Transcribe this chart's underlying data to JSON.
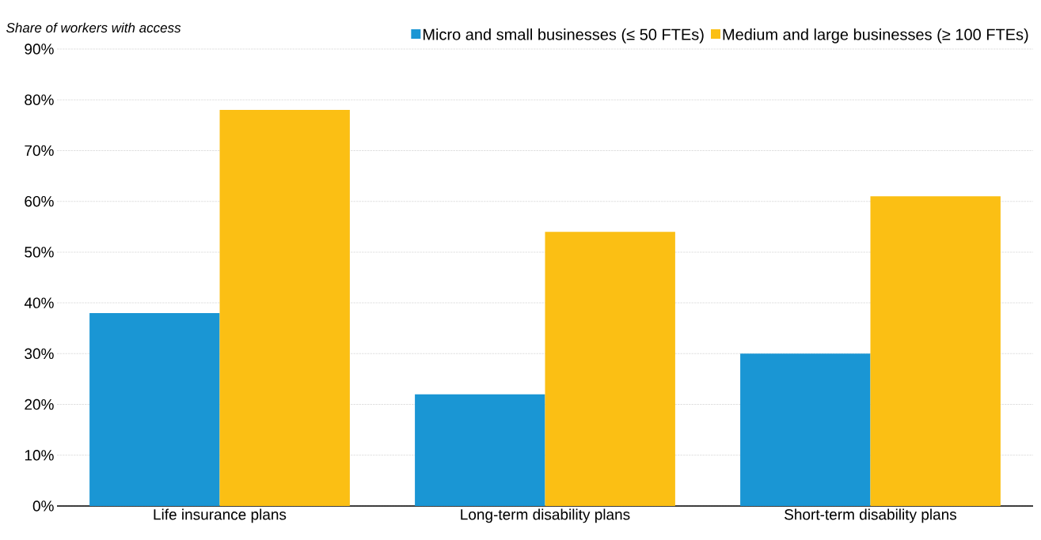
{
  "chart_data": {
    "type": "bar",
    "ylabel": "Share of workers with access",
    "categories": [
      "Life insurance plans",
      "Long-term disability plans",
      "Short-term disability plans"
    ],
    "series": [
      {
        "name": "Micro and small businesses (≤ 50 FTEs)",
        "color": "#1a96d4",
        "values": [
          38,
          22,
          30
        ]
      },
      {
        "name": "Medium and large businesses (≥ 100 FTEs)",
        "color": "#fbbf14",
        "values": [
          78,
          54,
          61
        ]
      }
    ],
    "ylim": [
      0,
      90
    ],
    "yticks": [
      {
        "value": 0,
        "label": "0%"
      },
      {
        "value": 10,
        "label": "10%"
      },
      {
        "value": 20,
        "label": "20%"
      },
      {
        "value": 30,
        "label": "30%"
      },
      {
        "value": 40,
        "label": "40%"
      },
      {
        "value": 50,
        "label": "50%"
      },
      {
        "value": 60,
        "label": "60%"
      },
      {
        "value": 70,
        "label": "70%"
      },
      {
        "value": 80,
        "label": "80%"
      },
      {
        "value": 90,
        "label": "90%"
      }
    ],
    "grid": "y",
    "legend": "top right"
  }
}
